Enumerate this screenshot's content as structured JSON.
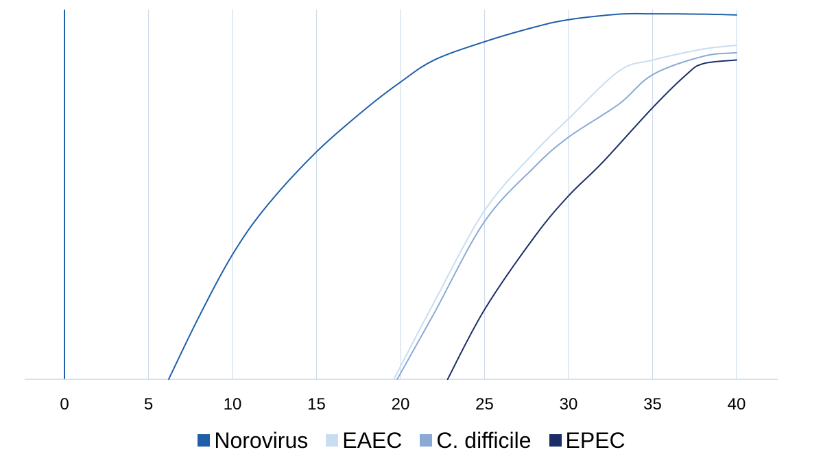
{
  "chart_data": {
    "type": "line",
    "x_ticks": [
      0,
      5,
      10,
      15,
      20,
      25,
      30,
      35,
      40
    ],
    "xlim": [
      0,
      40
    ],
    "ylim": [
      0,
      1
    ],
    "grid": "vertical",
    "legend_position": "bottom",
    "title": "",
    "xlabel": "",
    "ylabel": "",
    "series": [
      {
        "name": "Norovirus",
        "color": "#1f5ea8",
        "x": [
          6.2,
          8,
          10,
          12,
          15,
          18,
          20,
          22,
          25,
          28,
          30,
          33,
          35,
          38,
          40
        ],
        "y": [
          0.0,
          0.17,
          0.34,
          0.47,
          0.62,
          0.74,
          0.81,
          0.87,
          0.92,
          0.96,
          0.98,
          0.995,
          0.996,
          0.995,
          0.993
        ]
      },
      {
        "name": "EAEC",
        "color": "#c9ddf0",
        "x": [
          19.6,
          22,
          25,
          28,
          30,
          33,
          35,
          38,
          40
        ],
        "y": [
          0.0,
          0.21,
          0.46,
          0.62,
          0.71,
          0.84,
          0.87,
          0.9,
          0.91
        ]
      },
      {
        "name": "C. difficile",
        "color": "#8aa9d6",
        "x": [
          19.8,
          22,
          25,
          28,
          30,
          33,
          35,
          38,
          40
        ],
        "y": [
          0.0,
          0.18,
          0.43,
          0.58,
          0.66,
          0.75,
          0.83,
          0.88,
          0.89
        ]
      },
      {
        "name": "EPEC",
        "color": "#1a2d66",
        "x": [
          22.8,
          25,
          28,
          30,
          32,
          35,
          37,
          38,
          40
        ],
        "y": [
          0.0,
          0.19,
          0.39,
          0.5,
          0.59,
          0.74,
          0.83,
          0.86,
          0.87
        ]
      }
    ],
    "zero_line_color": "#1f5ea8",
    "grid_color": "#cfdcec",
    "axis_color": "#c6d6ea"
  }
}
